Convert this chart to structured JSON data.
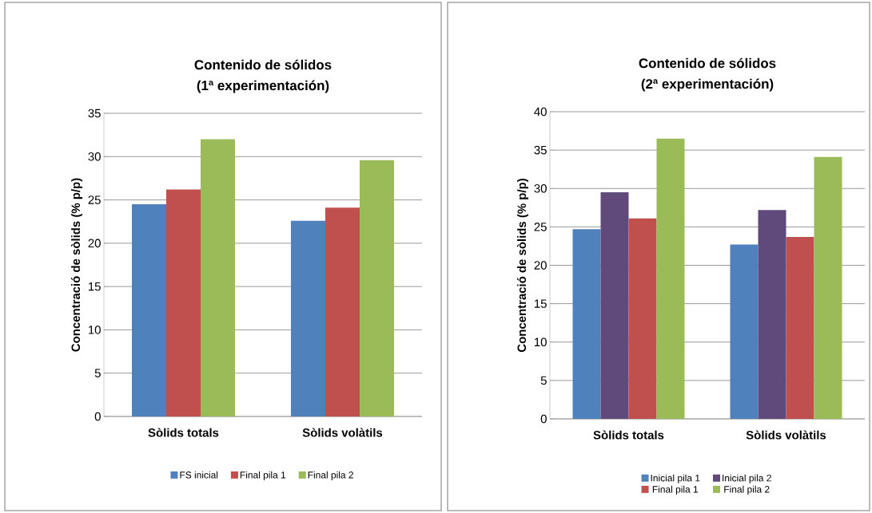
{
  "chart_data": [
    {
      "type": "bar",
      "title": "Contenido de sólidos",
      "subtitle": "(1ª experimentación)",
      "ylabel": "Concentració de sòlids (% p/p)",
      "categories": [
        "Sòlids totals",
        "Sòlids volàtils"
      ],
      "series": [
        {
          "name": "FS inicial",
          "color": "#4f81bd",
          "values": [
            24.5,
            22.6
          ]
        },
        {
          "name": "Final pila 1",
          "color": "#c0504d",
          "values": [
            26.2,
            24.1
          ]
        },
        {
          "name": "Final pila 2",
          "color": "#9bbb59",
          "values": [
            32.0,
            29.6
          ]
        }
      ],
      "ylim": [
        0,
        35
      ],
      "yticks": [
        0,
        5,
        10,
        15,
        20,
        25,
        30,
        35
      ],
      "grid": "y",
      "legend": "bottom"
    },
    {
      "type": "bar",
      "title": "Contenido de sólidos",
      "subtitle": "(2ª experimentación)",
      "ylabel": "Concentració de sòlids (% p/p)",
      "categories": [
        "Sòlids totals",
        "Sòlids volàtils"
      ],
      "series": [
        {
          "name": "Inicial pila 1",
          "color": "#4f81bd",
          "values": [
            24.7,
            22.7
          ]
        },
        {
          "name": "Inicial pila 2",
          "color": "#604a7b",
          "values": [
            29.5,
            27.2
          ]
        },
        {
          "name": "Final pila 1",
          "color": "#c0504d",
          "values": [
            26.1,
            23.7
          ]
        },
        {
          "name": "Final pila 2",
          "color": "#9bbb59",
          "values": [
            36.5,
            34.1
          ]
        }
      ],
      "ylim": [
        0,
        40
      ],
      "yticks": [
        0,
        5,
        10,
        15,
        20,
        25,
        30,
        35,
        40
      ],
      "grid": "y",
      "legend": "bottom"
    }
  ]
}
